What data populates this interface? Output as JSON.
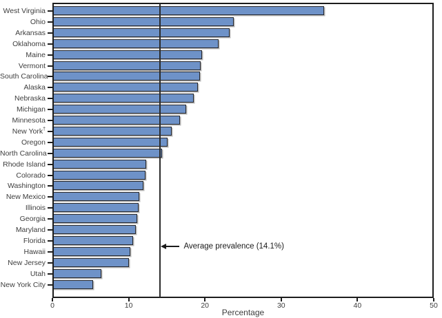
{
  "chart_data": {
    "type": "bar",
    "orientation": "horizontal",
    "title": "",
    "xlabel": "Percentage",
    "ylabel": "",
    "xlim": [
      0,
      50
    ],
    "xticks": [
      0,
      10,
      20,
      30,
      40,
      50
    ],
    "grid": false,
    "legend": null,
    "categories": [
      "West Virginia",
      "Ohio",
      "Arkansas",
      "Oklahoma",
      "Maine",
      "Vermont",
      "South Carolina",
      "Alaska",
      "Nebraska",
      "Michigan",
      "Minnesota",
      "New York†",
      "Oregon",
      "North Carolina",
      "Rhode Island",
      "Colorado",
      "Washington",
      "New Mexico",
      "Illinois",
      "Georgia",
      "Maryland",
      "Florida",
      "Hawaii",
      "New Jersey",
      "Utah",
      "New York City"
    ],
    "values": [
      35.7,
      23.9,
      23.3,
      21.9,
      19.7,
      19.5,
      19.4,
      19.2,
      18.6,
      17.6,
      16.8,
      15.7,
      15.2,
      14.5,
      12.4,
      12.3,
      12.0,
      11.5,
      11.4,
      11.2,
      11.0,
      10.7,
      10.3,
      10.1,
      6.5,
      5.4
    ],
    "average_line": {
      "value": 14.1,
      "label": "Average prevalence (14.1%)"
    },
    "footnote_marker": "†"
  },
  "colors": {
    "bar_fill": "#6e92c8",
    "bar_border": "#25262b",
    "bar_shadow": "#b8b8b8",
    "axis": "#1c1c1c",
    "text": "#3d3d3d",
    "background": "#ffffff"
  },
  "icons": {
    "annotation_arrow": "left-arrow-icon"
  }
}
